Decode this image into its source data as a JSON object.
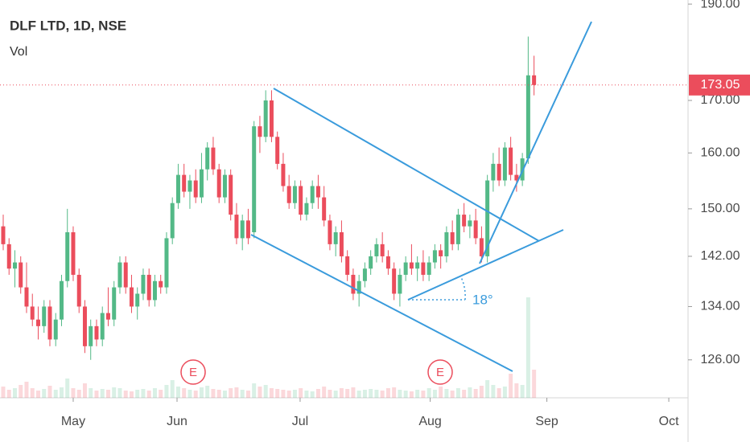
{
  "chart_data": {
    "type": "candlestick",
    "title": "DLF LTD, 1D, NSE",
    "volume_label": "Vol",
    "log_scale": true,
    "up_color": "#53b987",
    "down_color": "#eb4d5c",
    "ylim": [
      120.6,
      190.9
    ],
    "yticks": [
      {
        "value": 126,
        "label": "126.00"
      },
      {
        "value": 134,
        "label": "134.00"
      },
      {
        "value": 142,
        "label": "142.00"
      },
      {
        "value": 150,
        "label": "150.00"
      },
      {
        "value": 160,
        "label": "160.00"
      },
      {
        "value": 170,
        "label": "170.00"
      },
      {
        "value": 190,
        "label": "190.00"
      }
    ],
    "xlim": [
      -0.55,
      117.4
    ],
    "xticks": [
      {
        "value": 12,
        "label": "May"
      },
      {
        "value": 29.8,
        "label": "Jun"
      },
      {
        "value": 50.9,
        "label": "Jul"
      },
      {
        "value": 73.2,
        "label": "Aug"
      },
      {
        "value": 93.2,
        "label": "Sep"
      },
      {
        "value": 114.1,
        "label": "Oct"
      }
    ],
    "last_price": 173.05,
    "events": [
      "E",
      "E"
    ],
    "annotations": [
      "18°"
    ],
    "open": [
      147,
      144,
      140,
      141,
      137,
      134,
      132,
      131,
      134,
      129,
      132,
      138,
      146,
      139,
      134,
      128,
      131,
      129,
      133,
      132,
      137,
      141,
      137,
      134,
      136,
      139,
      135,
      138,
      137,
      145,
      151,
      156,
      153,
      155,
      152,
      157,
      161,
      157,
      152,
      156,
      149,
      145,
      148,
      146,
      165,
      163,
      170,
      163,
      158,
      154,
      151,
      154,
      149,
      151,
      154,
      152,
      148,
      144,
      146,
      142,
      139,
      136,
      138,
      140,
      142,
      144,
      142,
      140,
      136,
      139,
      141,
      140,
      141,
      139,
      141,
      143,
      142,
      146,
      144,
      149,
      147,
      148,
      145,
      142,
      155,
      158,
      155,
      161,
      156,
      155,
      159,
      175
    ],
    "high": [
      149,
      145,
      143,
      142,
      141,
      136,
      134,
      135,
      135,
      133,
      139,
      150,
      147,
      140,
      135,
      132,
      132,
      134,
      137,
      138,
      142,
      142,
      139,
      137,
      140,
      140,
      139,
      139,
      146,
      152,
      158,
      158,
      156,
      157,
      160,
      162,
      163,
      158,
      157,
      157,
      151,
      149,
      150,
      166,
      167,
      172,
      172,
      164,
      160,
      156,
      155,
      155,
      152,
      155,
      156,
      154,
      149,
      147,
      148,
      143,
      140,
      139,
      141,
      143,
      145,
      146,
      143,
      141,
      140,
      142,
      144,
      142,
      143,
      142,
      144,
      144,
      147,
      148,
      150,
      151,
      149,
      150,
      147,
      156,
      160,
      161,
      162,
      163,
      158,
      160,
      183,
      179
    ],
    "low": [
      143,
      139,
      137,
      136,
      133,
      131,
      129,
      130,
      128,
      128,
      131,
      137,
      138,
      133,
      127,
      126,
      128,
      128,
      131,
      131,
      136,
      136,
      133,
      132,
      135,
      134,
      134,
      136,
      136,
      144,
      150,
      152,
      150,
      151,
      151,
      155,
      156,
      151,
      151,
      148,
      144,
      143,
      144,
      145,
      160,
      162,
      162,
      157,
      153,
      150,
      150,
      148,
      148,
      150,
      150,
      147,
      143,
      142,
      141,
      138,
      135,
      134,
      137,
      139,
      141,
      141,
      139,
      135,
      134,
      138,
      139,
      138,
      138,
      138,
      140,
      140,
      141,
      143,
      143,
      146,
      145,
      144,
      141,
      141,
      153,
      154,
      154,
      155,
      153,
      154,
      158,
      171
    ],
    "close": [
      144,
      140,
      141,
      137,
      134,
      132,
      131,
      134,
      129,
      132,
      138,
      146,
      139,
      134,
      128,
      131,
      129,
      133,
      132,
      137,
      141,
      137,
      134,
      136,
      139,
      135,
      138,
      137,
      145,
      151,
      156,
      153,
      155,
      152,
      157,
      161,
      157,
      152,
      156,
      149,
      145,
      148,
      145,
      165,
      163,
      170,
      163,
      158,
      154,
      151,
      154,
      149,
      151,
      154,
      152,
      148,
      144,
      146,
      142,
      139,
      136,
      138,
      140,
      142,
      144,
      142,
      140,
      136,
      139,
      141,
      140,
      141,
      139,
      141,
      143,
      142,
      146,
      144,
      149,
      147,
      148,
      145,
      142,
      155,
      158,
      155,
      161,
      156,
      155,
      159,
      175,
      173.05
    ],
    "volume": [
      14,
      10,
      12,
      16,
      20,
      12,
      9,
      11,
      15,
      10,
      13,
      24,
      12,
      10,
      18,
      12,
      9,
      11,
      10,
      13,
      12,
      9,
      8,
      10,
      11,
      9,
      12,
      10,
      16,
      22,
      14,
      12,
      10,
      9,
      13,
      15,
      11,
      10,
      9,
      12,
      13,
      10,
      9,
      18,
      14,
      16,
      12,
      11,
      10,
      9,
      10,
      12,
      9,
      8,
      11,
      14,
      10,
      9,
      12,
      11,
      13,
      9,
      10,
      11,
      10,
      9,
      12,
      13,
      10,
      9,
      8,
      10,
      9,
      12,
      10,
      14,
      11,
      9,
      12,
      10,
      13,
      11,
      15,
      22,
      16,
      12,
      14,
      30,
      18,
      16,
      125,
      35
    ]
  }
}
